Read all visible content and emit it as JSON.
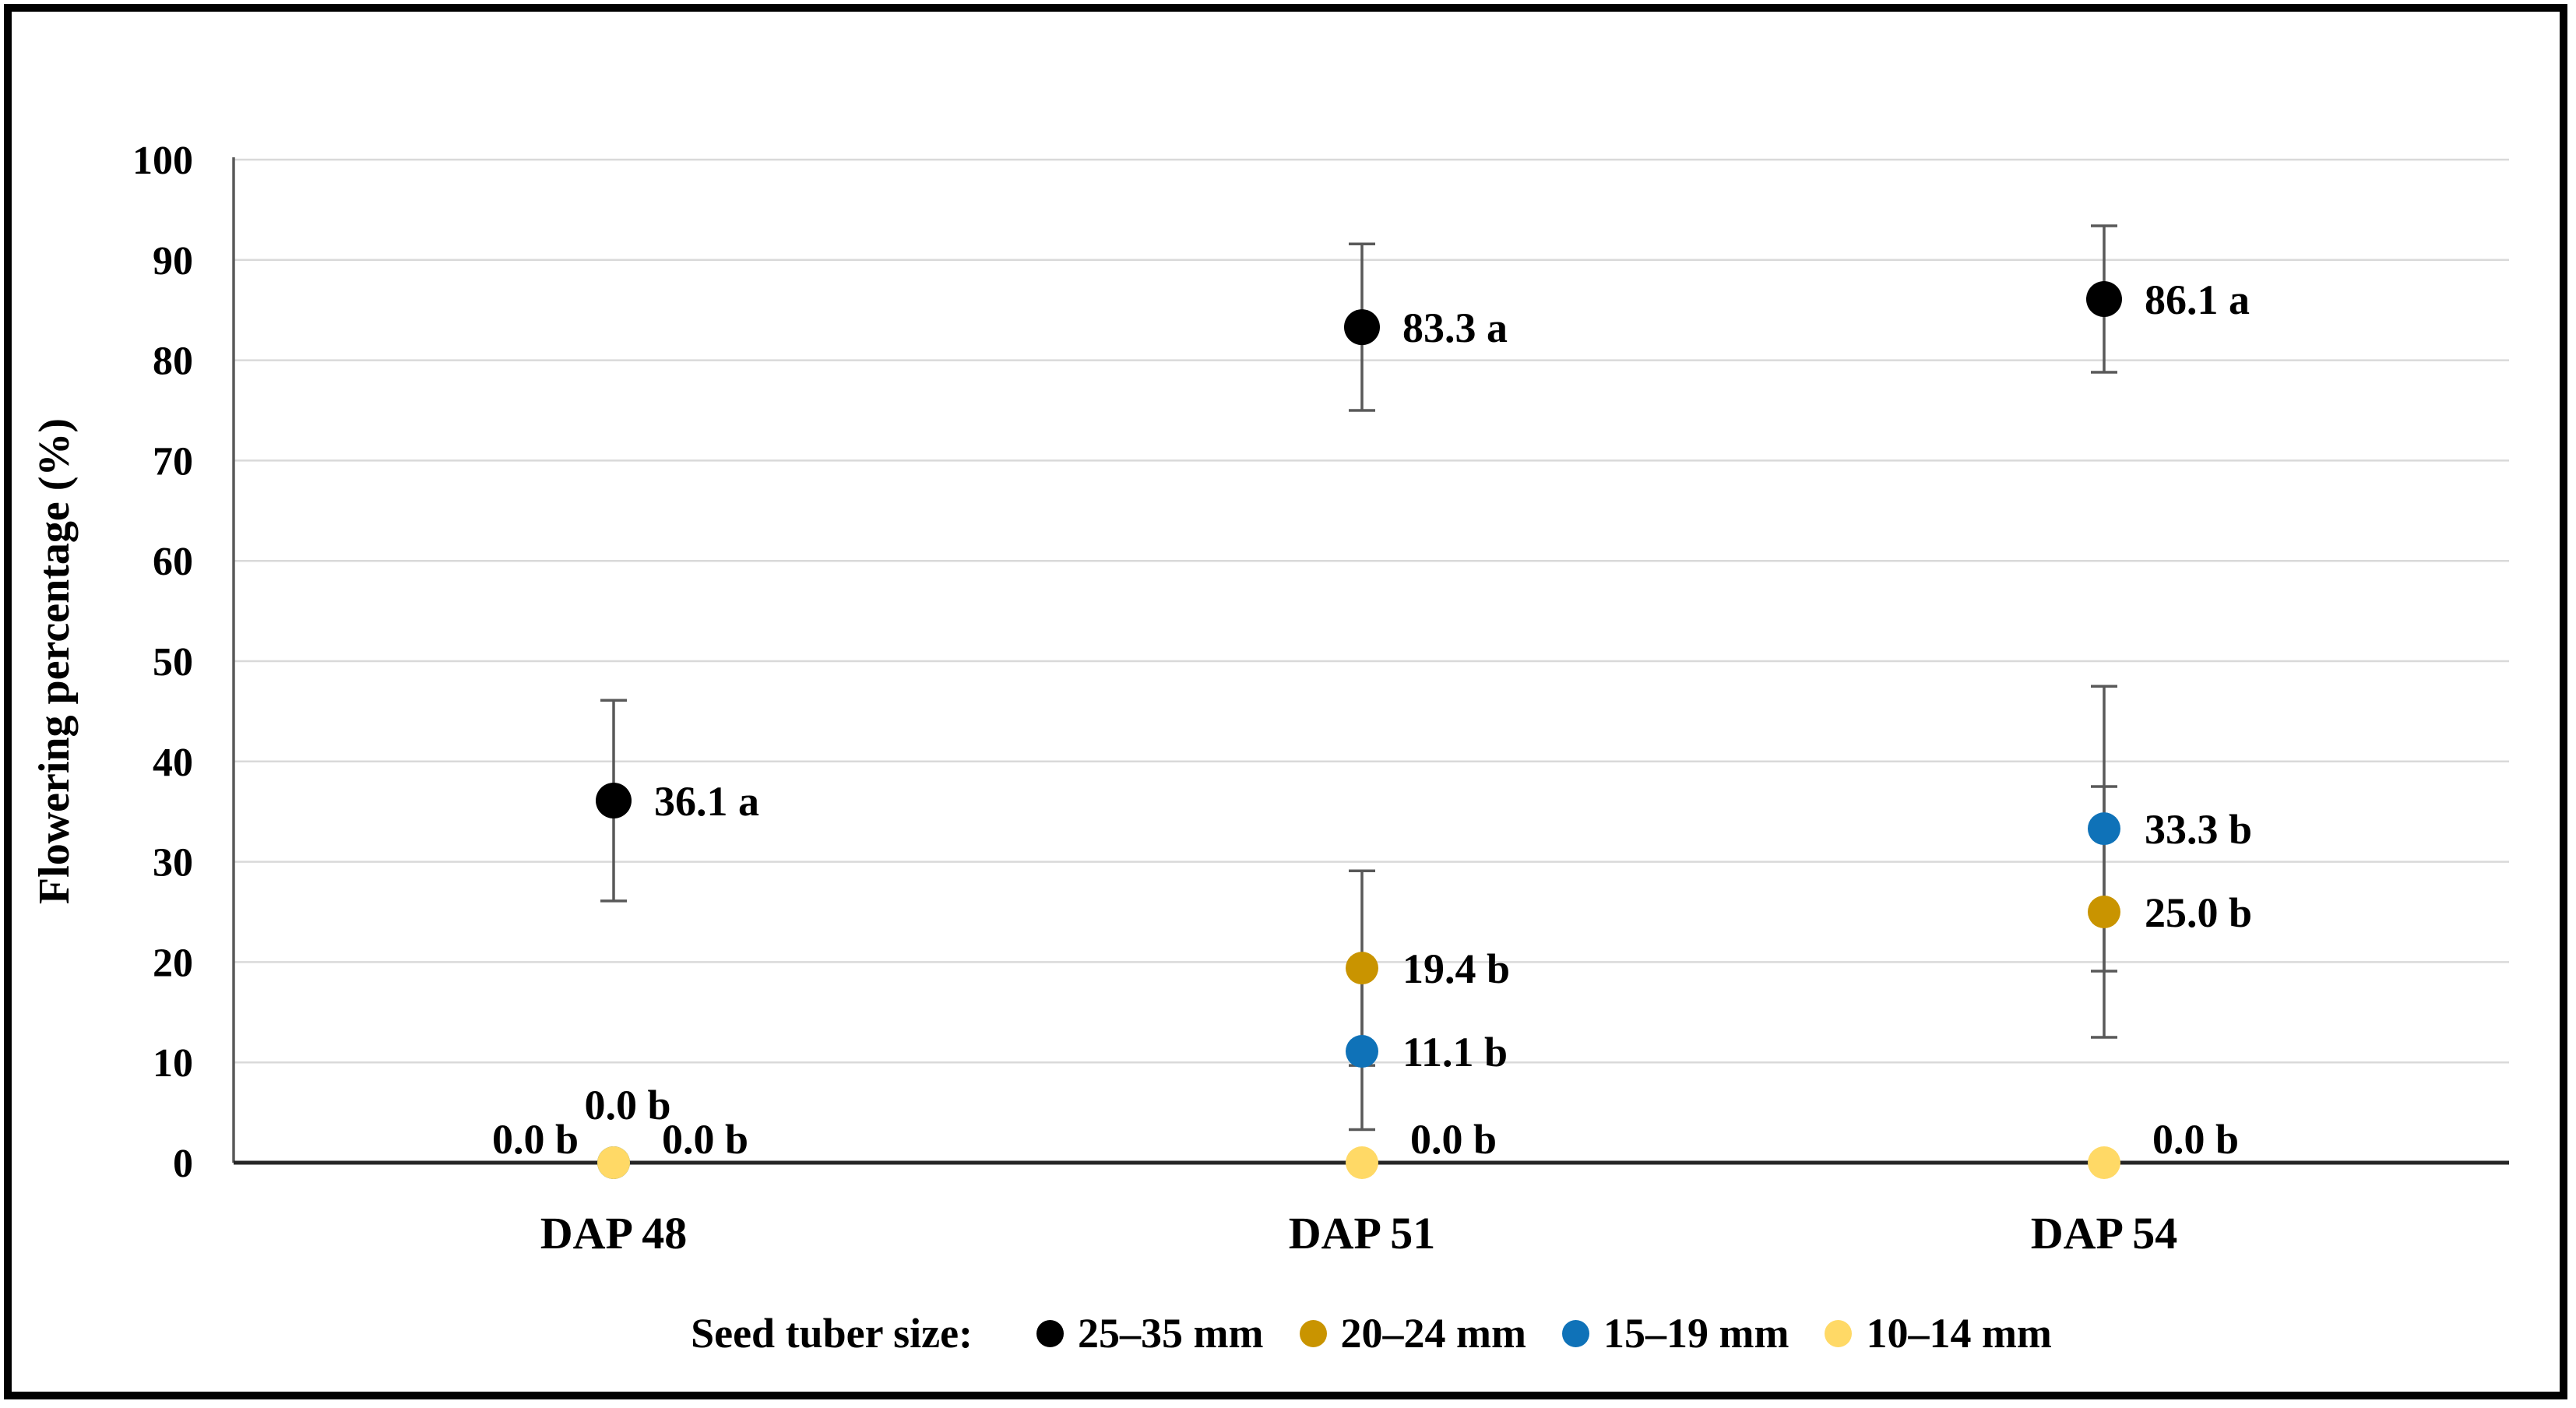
{
  "chart_data": {
    "type": "scatter",
    "title": "",
    "ylabel": "Flowering percentage (%)",
    "xlabel": "",
    "ylim": [
      0,
      100
    ],
    "yticks": [
      0,
      10,
      20,
      30,
      40,
      50,
      60,
      70,
      80,
      90,
      100
    ],
    "grid": "horizontal",
    "categories": [
      "DAP 48",
      "DAP 51",
      "DAP 54"
    ],
    "legend_title": "Seed tuber size:",
    "legend_position": "bottom",
    "gridline_color": "#D9D9D9",
    "axis_color": "#262626",
    "error_bar_color": "#595959",
    "series": [
      {
        "name": "25–35 mm",
        "color": "#000000",
        "values": [
          36.1,
          83.3,
          86.1
        ],
        "errors": [
          10.0,
          8.3,
          7.3
        ],
        "point_labels": [
          "36.1 a",
          "83.3 a",
          "86.1 a"
        ]
      },
      {
        "name": "20–24 mm",
        "color": "#C99400",
        "values": [
          0.0,
          19.4,
          25.0
        ],
        "errors": [
          null,
          9.7,
          12.5
        ],
        "point_labels": [
          "0.0 b",
          "19.4 b",
          "25.0 b"
        ]
      },
      {
        "name": "15–19 mm",
        "color": "#0F72B8",
        "values": [
          0.0,
          11.1,
          33.3
        ],
        "errors": [
          null,
          7.8,
          14.2
        ],
        "point_labels": [
          "0.0 b",
          "11.1 b",
          "33.3 b"
        ]
      },
      {
        "name": "10–14 mm",
        "color": "#FFD966",
        "values": [
          0.0,
          0.0,
          0.0
        ],
        "errors": [
          null,
          null,
          null
        ],
        "point_labels": [
          "0.0 b",
          "0.0 b",
          "0.0 b"
        ]
      }
    ]
  }
}
